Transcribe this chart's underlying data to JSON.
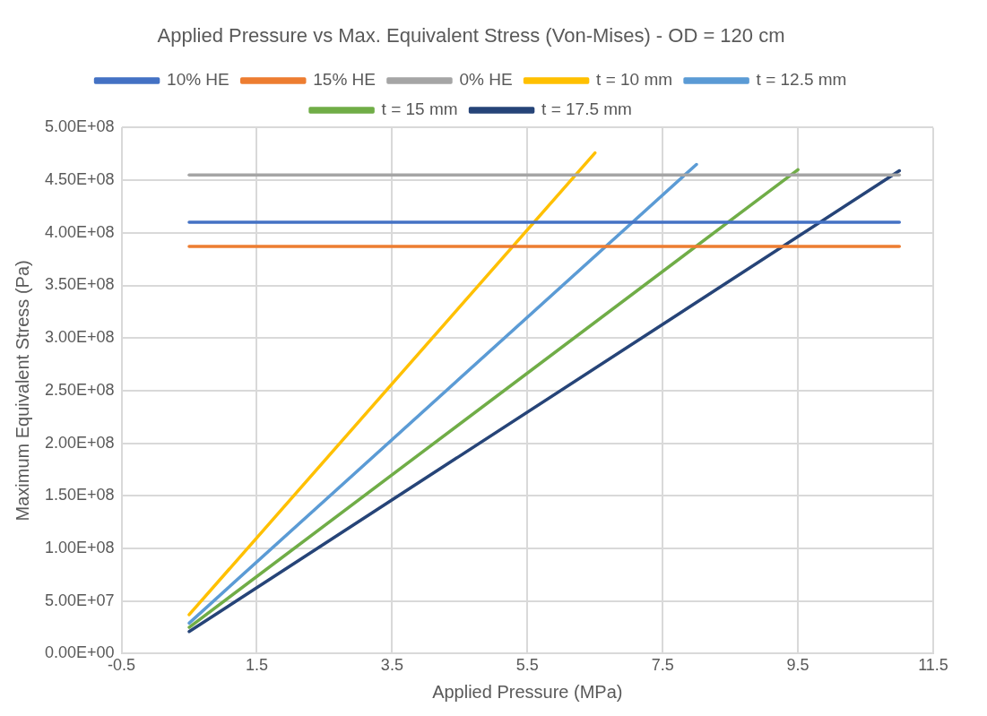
{
  "chart_data": {
    "type": "line",
    "title": "Applied Pressure vs Max. Equivalent Stress (Von-Mises) - OD = 120 cm",
    "xlabel": "Applied Pressure (MPa)",
    "ylabel": "Maximum Equivalent Stress (Pa)",
    "series": [
      {
        "name": "10% HE",
        "color": "#4472c4",
        "x": [
          0.5,
          11
        ],
        "values": [
          410000000,
          410000000
        ]
      },
      {
        "name": "15% HE",
        "color": "#ed7d31",
        "x": [
          0.5,
          11
        ],
        "values": [
          387000000,
          387000000
        ]
      },
      {
        "name": "0% HE",
        "color": "#a5a5a5",
        "x": [
          0.5,
          11
        ],
        "values": [
          455000000,
          455000000
        ]
      },
      {
        "name": "t = 10 mm",
        "color": "#ffc000",
        "x": [
          0.5,
          6.5
        ],
        "values": [
          37000000,
          476000000
        ]
      },
      {
        "name": "t = 12.5 mm",
        "color": "#5b9bd5",
        "x": [
          0.5,
          8
        ],
        "values": [
          29000000,
          465000000
        ]
      },
      {
        "name": "t = 15 mm",
        "color": "#70ad47",
        "x": [
          0.5,
          9.5
        ],
        "values": [
          25000000,
          460000000
        ]
      },
      {
        "name": "t = 17.5 mm",
        "color": "#264478",
        "x": [
          0.5,
          11
        ],
        "values": [
          21000000,
          459000000
        ]
      }
    ],
    "xlim": [
      -0.5,
      11.5
    ],
    "xticks": [
      -0.5,
      1.5,
      3.5,
      5.5,
      7.5,
      9.5,
      11.5
    ],
    "ylim": [
      0,
      500000000
    ],
    "yticks": [
      {
        "value": 0,
        "label": "0.00E+00"
      },
      {
        "value": 50000000,
        "label": "5.00E+07"
      },
      {
        "value": 100000000,
        "label": "1.00E+08"
      },
      {
        "value": 150000000,
        "label": "1.50E+08"
      },
      {
        "value": 200000000,
        "label": "2.00E+08"
      },
      {
        "value": 250000000,
        "label": "2.50E+08"
      },
      {
        "value": 300000000,
        "label": "3.00E+08"
      },
      {
        "value": 350000000,
        "label": "3.50E+08"
      },
      {
        "value": 400000000,
        "label": "4.00E+08"
      },
      {
        "value": 450000000,
        "label": "4.50E+08"
      },
      {
        "value": 500000000,
        "label": "5.00E+08"
      }
    ],
    "grid": true,
    "legend": "top",
    "marker": "none",
    "line_style": "solid"
  }
}
